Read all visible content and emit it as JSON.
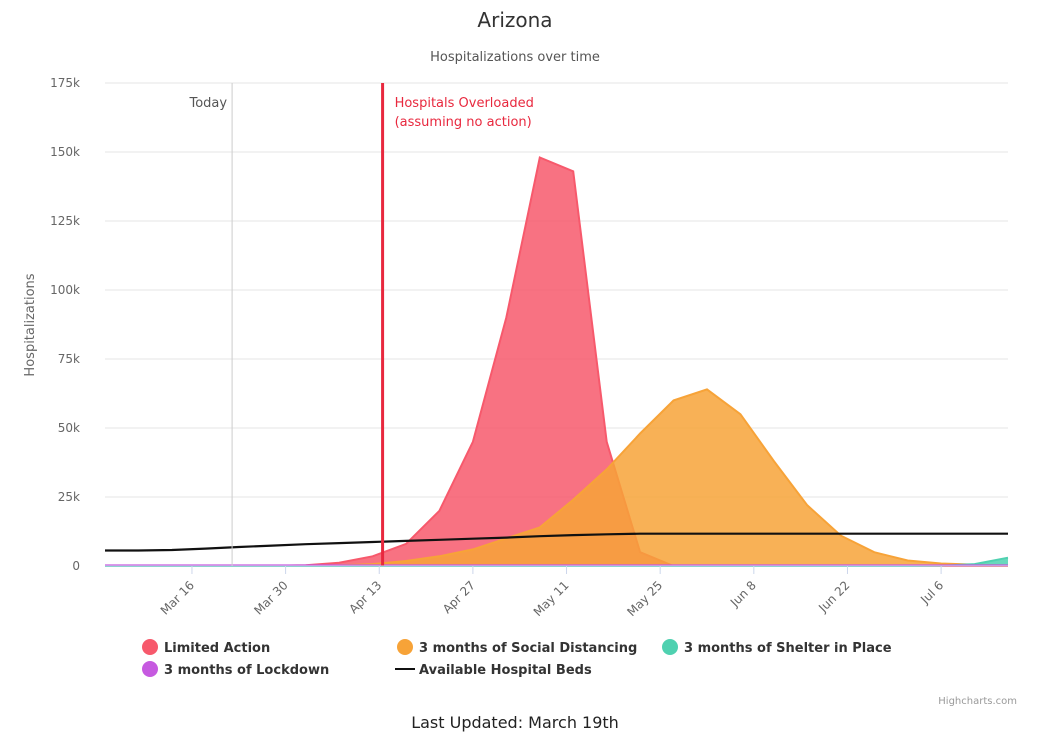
{
  "chart_data": {
    "type": "area",
    "title": "Arizona",
    "subtitle": "Hospitalizations over time",
    "ylabel": "Hospitalizations",
    "xlabel": "",
    "x_start": "2020-03-03",
    "x_step_days": 5,
    "x_ticks": [
      "Mar 16",
      "Mar 30",
      "Apr 13",
      "Apr 27",
      "May 11",
      "May 25",
      "Jun 8",
      "Jun 22",
      "Jul 6"
    ],
    "y_ticks": [
      "0",
      "25k",
      "50k",
      "75k",
      "100k",
      "125k",
      "150k",
      "175k"
    ],
    "ylim": [
      0,
      175000
    ],
    "grid": true,
    "legend_position": "bottom",
    "series": [
      {
        "name": "Limited Action",
        "type": "area",
        "color": "#f7596c",
        "values": [
          0,
          0,
          0,
          0,
          0,
          100,
          300,
          1200,
          3500,
          8000,
          20000,
          45000,
          90000,
          148000,
          143000,
          45000,
          5000,
          0,
          0,
          0,
          0,
          0,
          0,
          0,
          0,
          0,
          0,
          0
        ]
      },
      {
        "name": "3 months of Social Distancing",
        "type": "area",
        "color": "#f7a338",
        "values": [
          0,
          0,
          0,
          0,
          0,
          0,
          100,
          200,
          700,
          1800,
          3500,
          6000,
          10000,
          14000,
          24000,
          35000,
          48000,
          60000,
          64000,
          55000,
          38000,
          22000,
          11000,
          5000,
          2000,
          900,
          500,
          200
        ]
      },
      {
        "name": "3 months of Shelter in Place",
        "type": "area",
        "color": "#4fd1b0",
        "values": [
          0,
          0,
          0,
          0,
          0,
          0,
          0,
          0,
          0,
          0,
          0,
          0,
          0,
          0,
          0,
          0,
          0,
          0,
          0,
          0,
          0,
          0,
          0,
          0,
          0,
          100,
          700,
          3000
        ]
      },
      {
        "name": "3 months of Lockdown",
        "type": "area",
        "color": "#c65ae0",
        "values": [
          200,
          200,
          200,
          200,
          200,
          200,
          200,
          200,
          200,
          200,
          200,
          200,
          200,
          200,
          200,
          200,
          200,
          200,
          200,
          200,
          200,
          200,
          200,
          200,
          200,
          200,
          200,
          200
        ]
      },
      {
        "name": "Available Hospital Beds",
        "type": "line",
        "color": "#111111",
        "values": [
          5600,
          5600,
          5800,
          6300,
          6900,
          7400,
          7900,
          8300,
          8700,
          9100,
          9500,
          9900,
          10300,
          10800,
          11200,
          11500,
          11700,
          11700,
          11700,
          11700,
          11700,
          11700,
          11700,
          11700,
          11700,
          11700,
          11700,
          11700
        ]
      }
    ],
    "plot_lines": [
      {
        "label": "Today",
        "index": 3.8,
        "color": "#cccccc"
      },
      {
        "label_lines": [
          "Hospitals Overloaded",
          "(assuming no action)"
        ],
        "index": 8.3,
        "color": "#e8283e"
      }
    ],
    "credits": "Highcharts.com"
  },
  "footer": "Last Updated: March 19th"
}
